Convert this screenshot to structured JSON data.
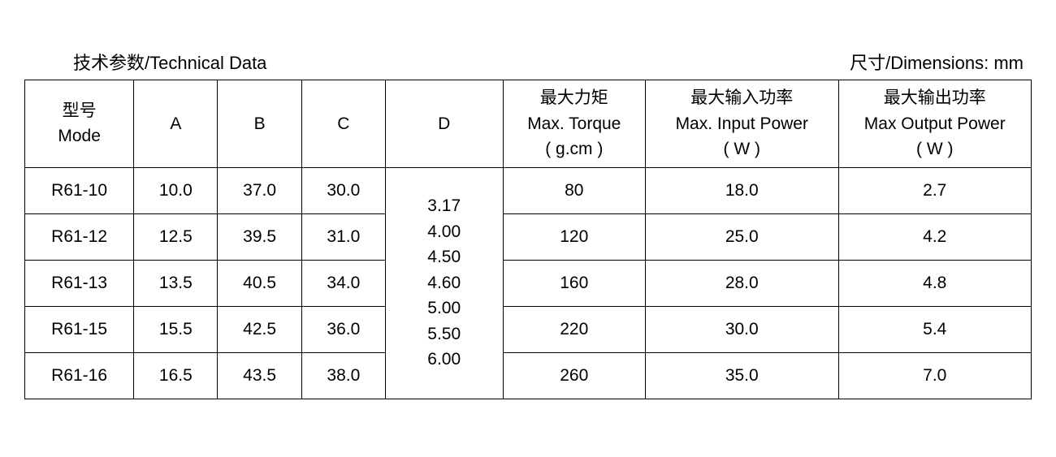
{
  "captions": {
    "left": "技术参数/Technical Data",
    "right": "尺寸/Dimensions: mm"
  },
  "headers": {
    "mode_cn": "型号",
    "mode_en": "Mode",
    "a": "A",
    "b": "B",
    "c": "C",
    "d": "D",
    "torque_cn": "最大力矩",
    "torque_en": "Max. Torque",
    "torque_unit": "( g.cm )",
    "in_cn": "最大输入功率",
    "in_en": "Max. Input Power",
    "in_unit": "( W )",
    "out_cn": "最大输出功率",
    "out_en": "Max Output Power",
    "out_unit": "( W )"
  },
  "d_values": [
    "3.17",
    "4.00",
    "4.50",
    "4.60",
    "5.00",
    "5.50",
    "6.00"
  ],
  "rows": [
    {
      "mode": "R61-10",
      "a": "10.0",
      "b": "37.0",
      "c": "30.0",
      "torque": "80",
      "in": "18.0",
      "out": "2.7"
    },
    {
      "mode": "R61-12",
      "a": "12.5",
      "b": "39.5",
      "c": "31.0",
      "torque": "120",
      "in": "25.0",
      "out": "4.2"
    },
    {
      "mode": "R61-13",
      "a": "13.5",
      "b": "40.5",
      "c": "34.0",
      "torque": "160",
      "in": "28.0",
      "out": "4.8"
    },
    {
      "mode": "R61-15",
      "a": "15.5",
      "b": "42.5",
      "c": "36.0",
      "torque": "220",
      "in": "30.0",
      "out": "5.4"
    },
    {
      "mode": "R61-16",
      "a": "16.5",
      "b": "43.5",
      "c": "38.0",
      "torque": "260",
      "in": "35.0",
      "out": "7.0"
    }
  ],
  "style": {
    "font_size_body": 21,
    "font_size_caption": 22,
    "border_color": "#000000",
    "background_color": "#ffffff",
    "text_color": "#000000"
  }
}
